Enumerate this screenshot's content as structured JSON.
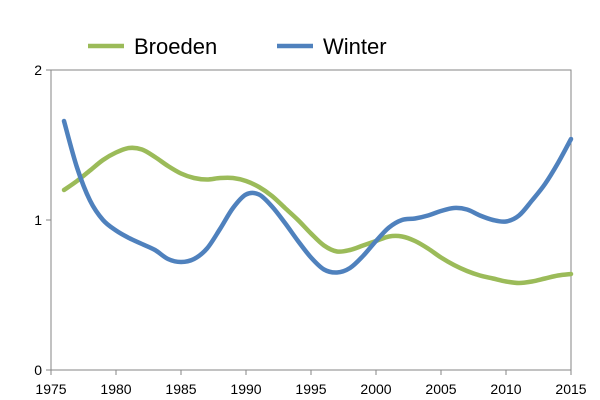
{
  "chart_data": {
    "type": "line",
    "title": "",
    "xlabel": "",
    "ylabel": "",
    "xlim": [
      1975,
      2015
    ],
    "ylim": [
      0,
      2
    ],
    "x_ticks": [
      1975,
      1980,
      1985,
      1990,
      1995,
      2000,
      2005,
      2010,
      2015
    ],
    "y_ticks": [
      0,
      1,
      2
    ],
    "grid": false,
    "legend": "top",
    "x": [
      1976,
      1977,
      1978,
      1979,
      1980,
      1981,
      1982,
      1983,
      1984,
      1985,
      1986,
      1987,
      1988,
      1989,
      1990,
      1991,
      1992,
      1993,
      1994,
      1995,
      1996,
      1997,
      1998,
      1999,
      2000,
      2001,
      2002,
      2003,
      2004,
      2005,
      2006,
      2007,
      2008,
      2009,
      2010,
      2011,
      2012,
      2013,
      2014,
      2015
    ],
    "series": [
      {
        "name": "Broeden",
        "color": "#9bbb59",
        "values": [
          1.2,
          1.26,
          1.33,
          1.4,
          1.45,
          1.48,
          1.47,
          1.42,
          1.36,
          1.31,
          1.28,
          1.27,
          1.28,
          1.28,
          1.26,
          1.22,
          1.16,
          1.08,
          1.0,
          0.91,
          0.83,
          0.79,
          0.8,
          0.83,
          0.86,
          0.89,
          0.89,
          0.86,
          0.81,
          0.75,
          0.7,
          0.66,
          0.63,
          0.61,
          0.59,
          0.58,
          0.59,
          0.61,
          0.63,
          0.64
        ]
      },
      {
        "name": "Winter",
        "color": "#4f81bd",
        "values": [
          1.66,
          1.35,
          1.13,
          1.0,
          0.93,
          0.88,
          0.84,
          0.8,
          0.74,
          0.72,
          0.74,
          0.81,
          0.94,
          1.08,
          1.17,
          1.17,
          1.09,
          0.98,
          0.86,
          0.75,
          0.67,
          0.65,
          0.68,
          0.76,
          0.86,
          0.95,
          1.0,
          1.01,
          1.03,
          1.06,
          1.08,
          1.07,
          1.03,
          1.0,
          0.99,
          1.03,
          1.13,
          1.24,
          1.38,
          1.54
        ]
      }
    ]
  }
}
